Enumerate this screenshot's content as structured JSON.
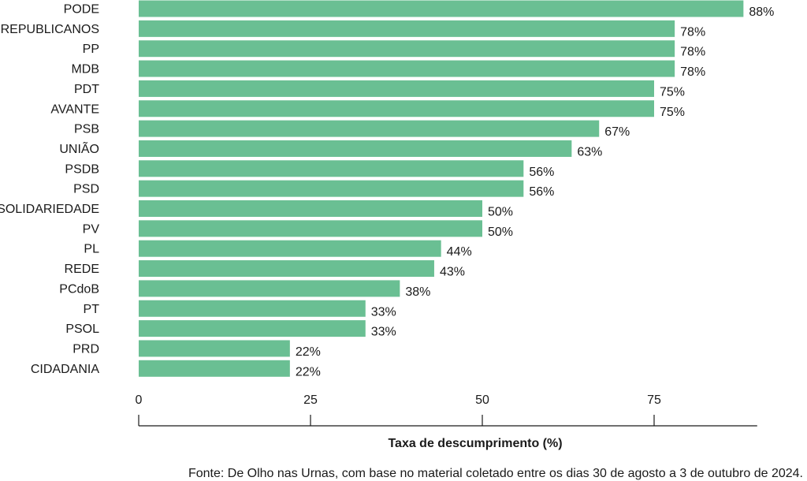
{
  "chart_data": {
    "type": "bar",
    "orientation": "horizontal",
    "categories": [
      "PODE",
      "REPUBLICANOS",
      "PP",
      "MDB",
      "PDT",
      "AVANTE",
      "PSB",
      "UNIÃO",
      "PSDB",
      "PSD",
      "SOLIDARIEDADE",
      "PV",
      "PL",
      "REDE",
      "PCdoB",
      "PT",
      "PSOL",
      "PRD",
      "CIDADANIA"
    ],
    "values": [
      88,
      78,
      78,
      78,
      75,
      75,
      67,
      63,
      56,
      56,
      50,
      50,
      44,
      43,
      38,
      33,
      33,
      22,
      22
    ],
    "value_labels": [
      "88%",
      "78%",
      "78%",
      "78%",
      "75%",
      "75%",
      "67%",
      "63%",
      "56%",
      "56%",
      "50%",
      "50%",
      "44%",
      "43%",
      "38%",
      "33%",
      "33%",
      "22%",
      "22%"
    ],
    "xlabel": "Taxa de descumprimento (%)",
    "ylabel": "",
    "xlim": [
      0,
      90
    ],
    "xticks": [
      0,
      25,
      50,
      75
    ],
    "xtick_labels": [
      "0",
      "25",
      "50",
      "75"
    ],
    "grid": false,
    "bar_color": "#6abf93",
    "source": "Fonte: De Olho nas Urnas, com base no material coletado entre os dias 30 de agosto a 3 de outubro de 2024."
  }
}
